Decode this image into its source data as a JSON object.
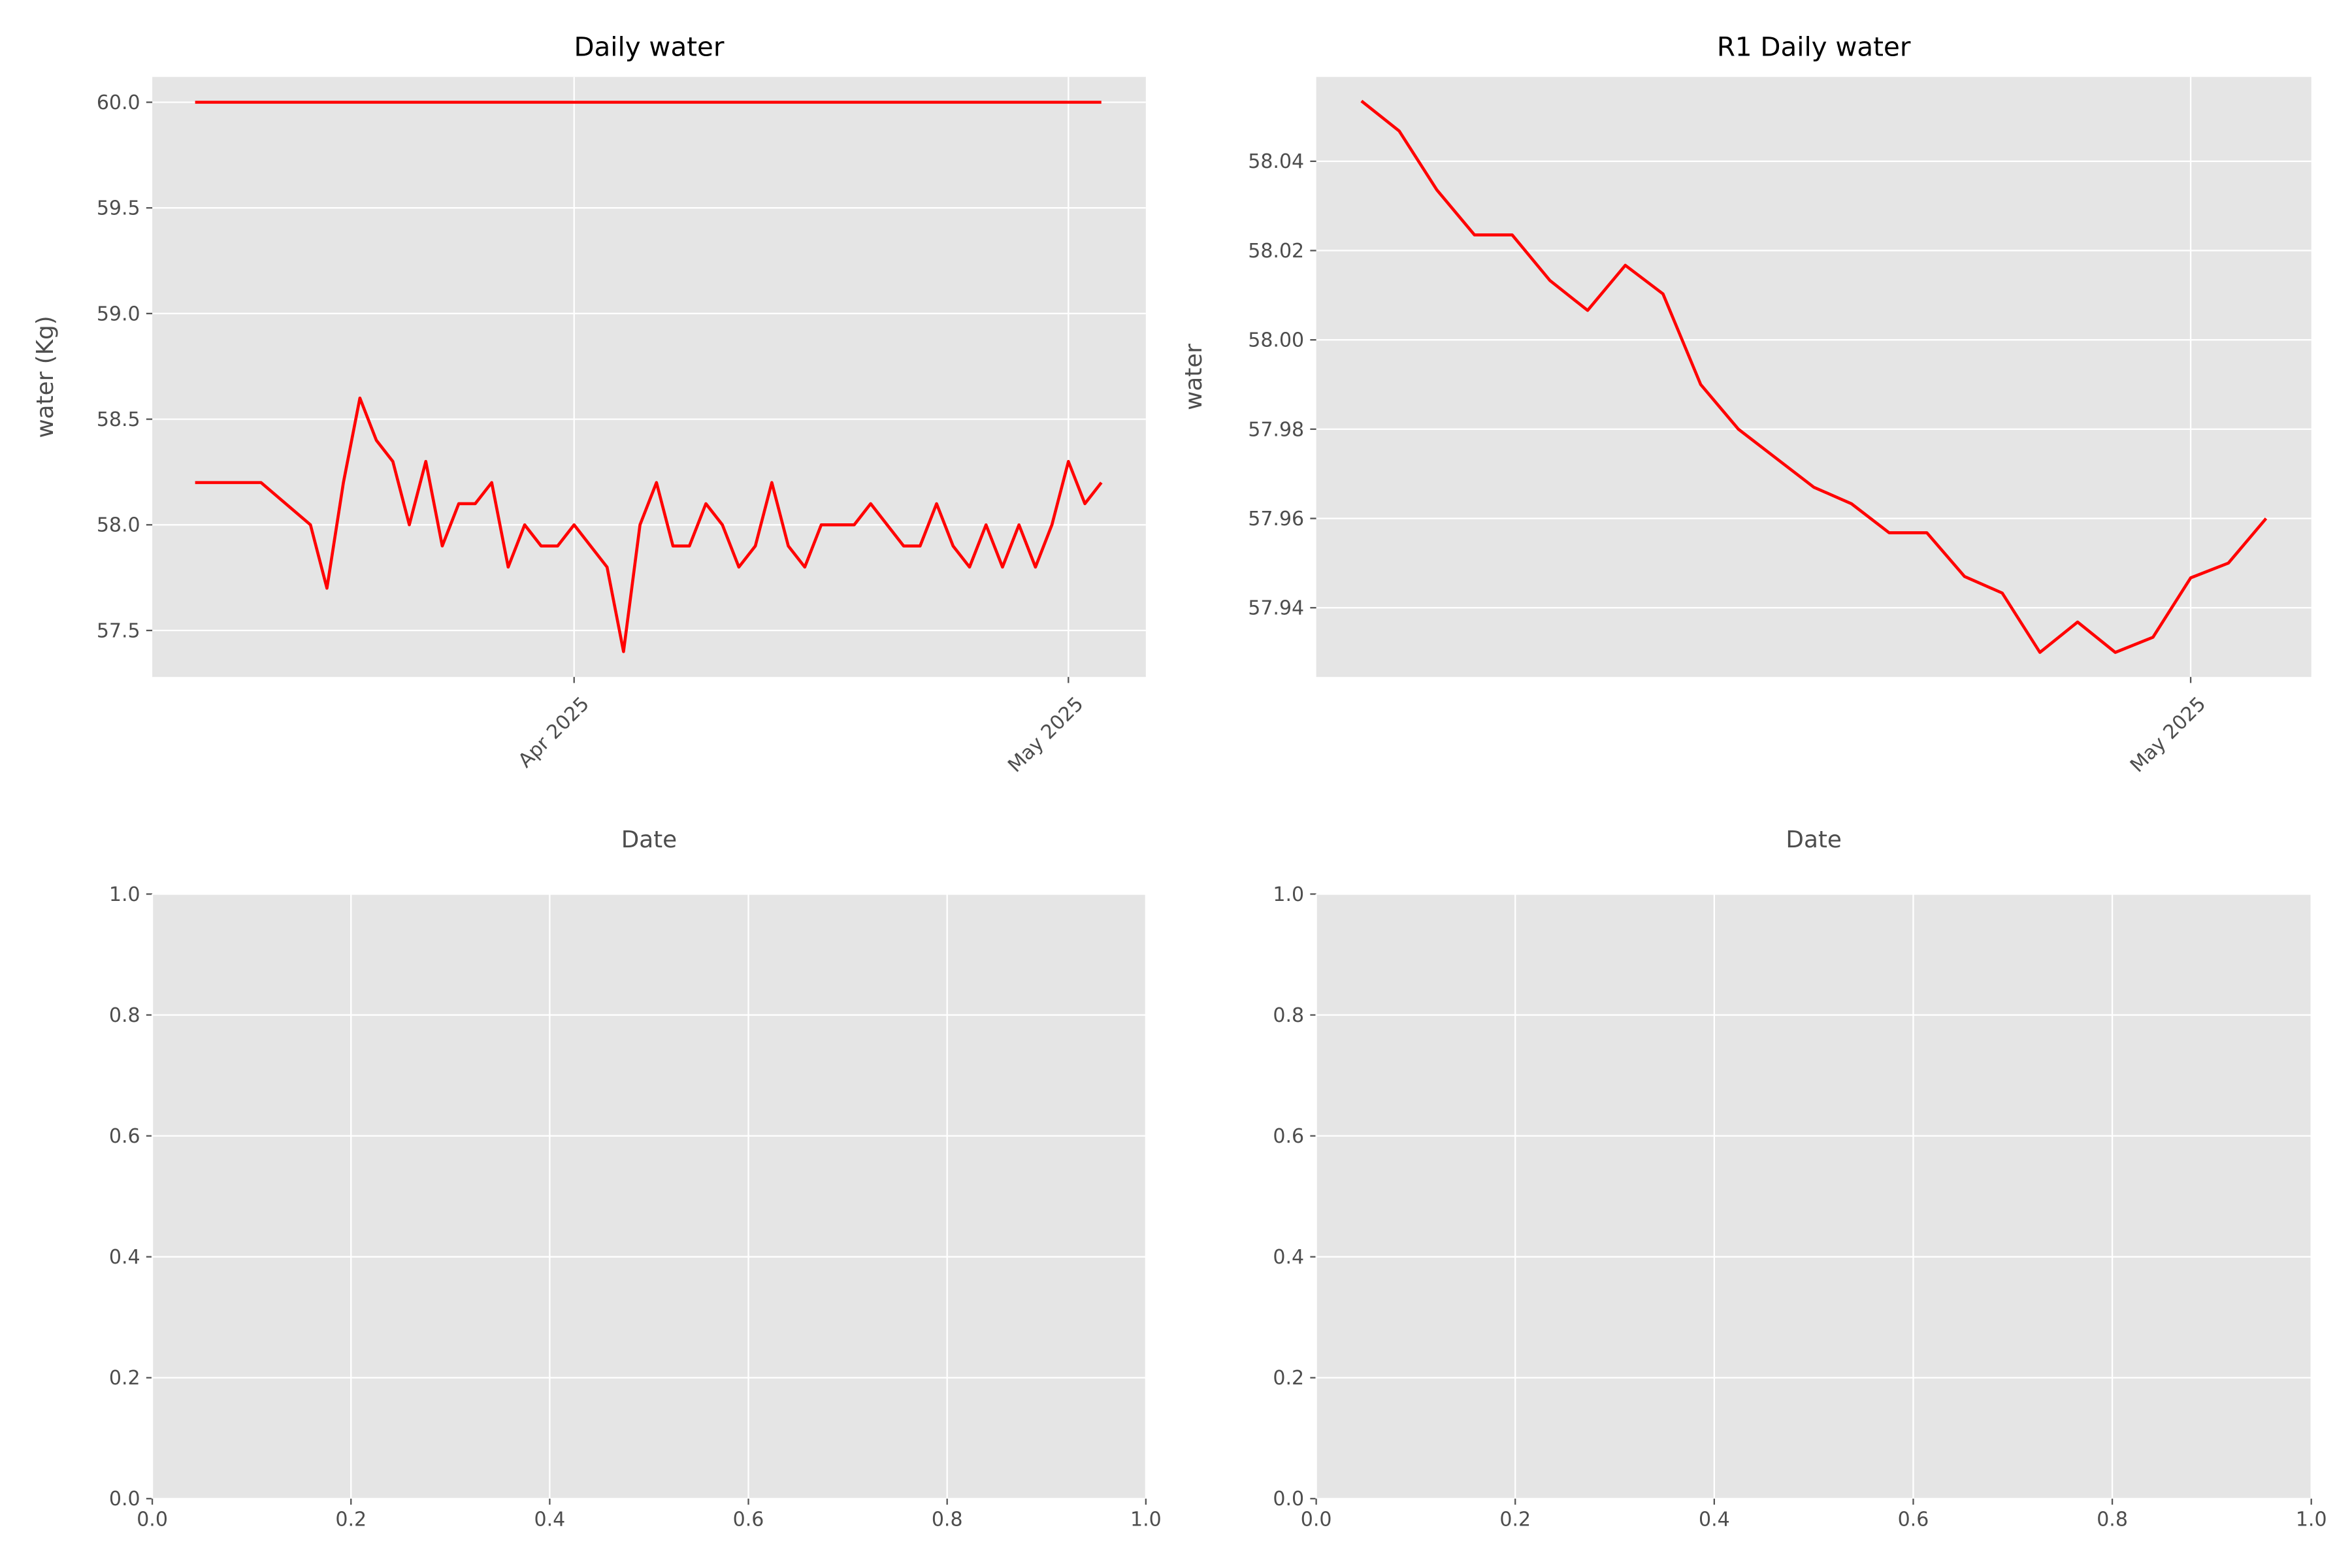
{
  "chart_data": [
    {
      "type": "line",
      "title": "Daily water",
      "x_label": "Date",
      "y_label": "water (Kg)",
      "x": [
        -23,
        -19,
        -16,
        -15,
        -14,
        -13,
        -12,
        -11,
        -10,
        -9,
        -8,
        -7,
        -6,
        -5,
        -4,
        -3,
        -2,
        -1,
        0,
        2,
        3,
        4,
        5,
        6,
        7,
        8,
        9,
        10,
        11,
        12,
        13,
        14,
        15,
        16,
        17,
        18,
        20,
        21,
        22,
        23,
        24,
        25,
        26,
        27,
        28,
        29,
        30,
        31,
        32
      ],
      "series": [
        {
          "color": "#ff0000",
          "values": [
            60,
            60,
            60,
            60,
            60,
            60,
            60,
            60,
            60,
            60,
            60,
            60,
            60,
            60,
            60,
            60,
            60,
            60,
            60,
            60,
            60,
            60,
            60,
            60,
            60,
            60,
            60,
            60,
            60,
            60,
            60,
            60,
            60,
            60,
            60,
            60,
            60,
            60,
            60,
            60,
            60,
            60,
            60,
            60,
            60,
            60,
            60,
            60,
            60
          ]
        },
        {
          "color": "#ff0000",
          "values": [
            58.2,
            58.2,
            58.0,
            57.7,
            58.2,
            58.6,
            58.4,
            58.3,
            58.0,
            58.3,
            57.9,
            58.1,
            58.1,
            58.2,
            57.8,
            58.0,
            57.9,
            57.9,
            58.0,
            57.8,
            57.4,
            58.0,
            58.2,
            57.9,
            57.9,
            58.1,
            58.0,
            57.8,
            57.9,
            58.2,
            57.9,
            57.8,
            58.0,
            58.0,
            58.0,
            58.1,
            57.9,
            57.9,
            58.1,
            57.9,
            57.8,
            58.0,
            57.8,
            58.0,
            57.8,
            58.0,
            58.3,
            58.1,
            58.2
          ]
        }
      ],
      "xlim": [
        -25.6,
        34.7
      ],
      "xticks": [
        {
          "value": 0,
          "label": "Apr 2025"
        },
        {
          "value": 30,
          "label": "May 2025"
        }
      ],
      "ylim": [
        57.28,
        60.12
      ],
      "yticks": [
        57.5,
        {
          "value": 58,
          "label": "58.0"
        },
        58.5,
        {
          "value": 59,
          "label": "59.0"
        },
        59.5,
        {
          "value": 60,
          "label": "60.0"
        }
      ],
      "grid": true
    },
    {
      "type": "line",
      "title": "R1 Daily water",
      "x_label": "Date",
      "y_label": "water",
      "x": [
        8,
        9,
        10,
        11,
        12,
        13,
        14,
        15,
        16,
        17,
        18,
        19,
        20,
        21,
        22,
        23,
        24,
        25,
        26,
        27,
        28,
        29,
        30,
        31,
        32
      ],
      "series": [
        {
          "color": "#ff0000",
          "values": [
            58.0535,
            58.0468,
            58.0336,
            58.0235,
            58.0235,
            58.0133,
            58.0066,
            58.0167,
            58.0103,
            57.99,
            57.98,
            57.9735,
            57.967,
            57.9633,
            57.9568,
            57.9568,
            57.947,
            57.9433,
            57.93,
            57.9368,
            57.93,
            57.9334,
            57.9467,
            57.95,
            57.96
          ]
        }
      ],
      "xlim": [
        6.8,
        33.2
      ],
      "xticks": [
        {
          "value": 30,
          "label": "May 2025"
        }
      ],
      "ylim": [
        57.9245,
        58.0589
      ],
      "yticks": [
        57.94,
        57.96,
        57.98,
        {
          "value": 58,
          "label": "58.00"
        },
        58.02,
        58.04
      ],
      "grid": true
    },
    {
      "type": "line",
      "xlim": [
        0,
        1
      ],
      "xticks": [
        {
          "value": 0,
          "label": "0.0"
        },
        0.2,
        0.4,
        0.6,
        0.8,
        {
          "value": 1,
          "label": "1.0"
        }
      ],
      "ylim": [
        0,
        1
      ],
      "yticks": [
        {
          "value": 0,
          "label": "0.0"
        },
        0.2,
        0.4,
        0.6,
        0.8,
        {
          "value": 1,
          "label": "1.0"
        }
      ],
      "grid": true
    },
    {
      "type": "line",
      "xlim": [
        0,
        1
      ],
      "xticks": [
        {
          "value": 0,
          "label": "0.0"
        },
        0.2,
        0.4,
        0.6,
        0.8,
        {
          "value": 1,
          "label": "1.0"
        }
      ],
      "ylim": [
        0,
        1
      ],
      "yticks": [
        {
          "value": 0,
          "label": "0.0"
        },
        0.2,
        0.4,
        0.6,
        0.8,
        {
          "value": 1,
          "label": "1.0"
        }
      ],
      "grid": true
    }
  ]
}
